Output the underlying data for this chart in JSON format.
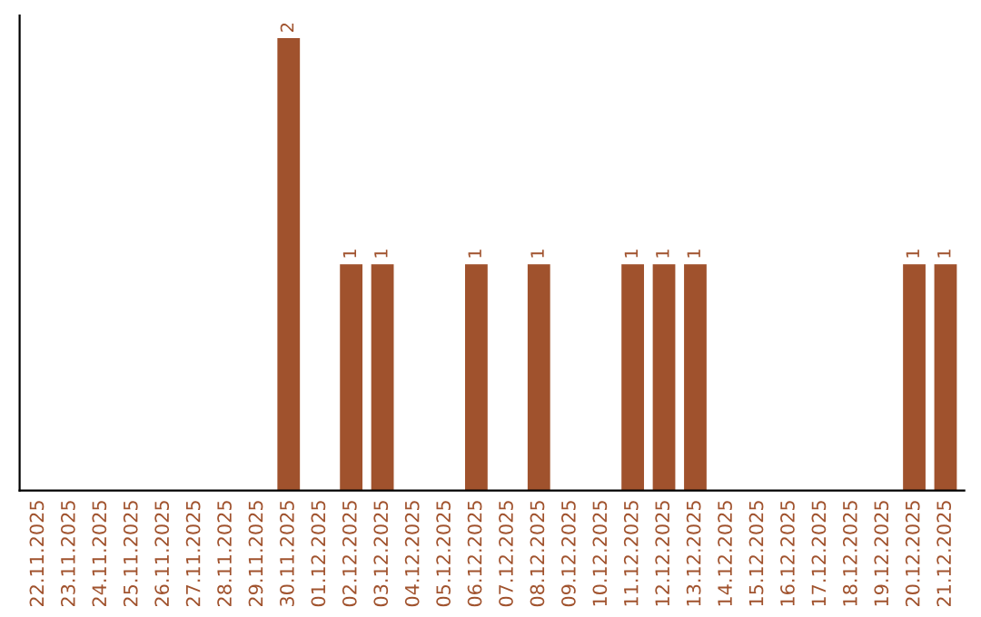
{
  "chart_data": {
    "type": "bar",
    "categories": [
      "22.11.2025",
      "23.11.2025",
      "24.11.2025",
      "25.11.2025",
      "26.11.2025",
      "27.11.2025",
      "28.11.2025",
      "29.11.2025",
      "30.11.2025",
      "01.12.2025",
      "02.12.2025",
      "03.12.2025",
      "04.12.2025",
      "05.12.2025",
      "06.12.2025",
      "07.12.2025",
      "08.12.2025",
      "09.12.2025",
      "10.12.2025",
      "11.12.2025",
      "12.12.2025",
      "13.12.2025",
      "14.12.2025",
      "15.12.2025",
      "16.12.2025",
      "17.12.2025",
      "18.12.2025",
      "19.12.2025",
      "20.12.2025",
      "21.12.2025"
    ],
    "values": [
      0,
      0,
      0,
      0,
      0,
      0,
      0,
      0,
      2,
      0,
      1,
      1,
      0,
      0,
      1,
      0,
      1,
      0,
      0,
      1,
      1,
      1,
      0,
      0,
      0,
      0,
      0,
      0,
      1,
      1
    ],
    "value_labels": [
      null,
      null,
      null,
      null,
      null,
      null,
      null,
      null,
      "2",
      null,
      "1",
      "1",
      null,
      null,
      "1",
      null,
      "1",
      null,
      null,
      "1",
      "1",
      "1",
      null,
      null,
      null,
      null,
      null,
      null,
      "1",
      "1"
    ],
    "color": "#a0522d",
    "tick_labels": "x",
    "grid": false,
    "legend": false
  }
}
